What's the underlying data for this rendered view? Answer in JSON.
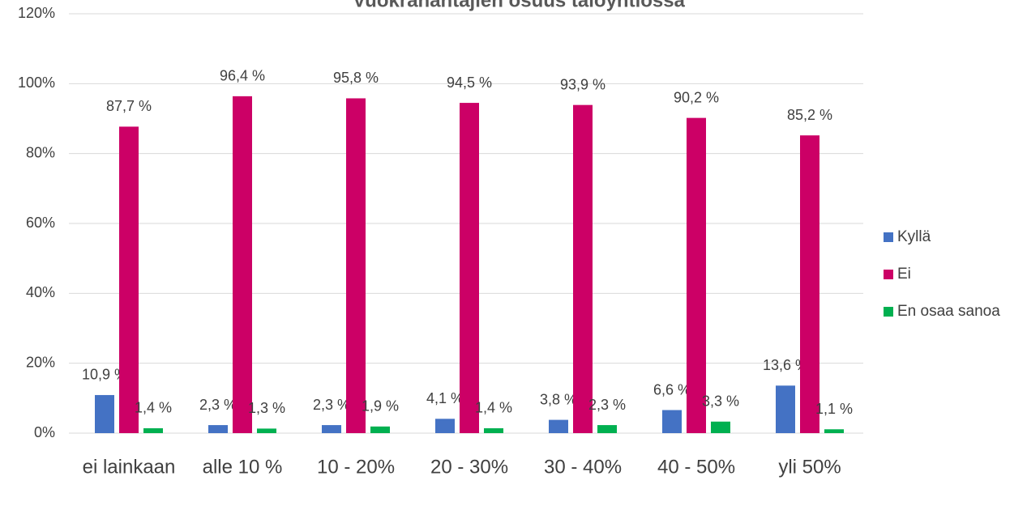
{
  "chart_data": {
    "type": "bar",
    "title": "Vuokranantajien osuus taloyhtiössä",
    "categories": [
      "ei lainkaan",
      "alle 10 %",
      "10 - 20%",
      "20 - 30%",
      "30 - 40%",
      "40 - 50%",
      "yli 50%"
    ],
    "series": [
      {
        "name": "Kyllä",
        "color": "#4472c4",
        "values": [
          10.9,
          2.3,
          2.3,
          4.1,
          3.8,
          6.6,
          13.6
        ],
        "value_labels": [
          "10,9 %",
          "2,3 %",
          "2,3 %",
          "4,1 %",
          "3,8 %",
          "6,6 %",
          "13,6 %"
        ]
      },
      {
        "name": "Ei",
        "color": "#cc0066",
        "values": [
          87.7,
          96.4,
          95.8,
          94.5,
          93.9,
          90.2,
          85.2
        ],
        "value_labels": [
          "87,7 %",
          "96,4 %",
          "95,8 %",
          "94,5 %",
          "93,9 %",
          "90,2 %",
          "85,2 %"
        ]
      },
      {
        "name": "En osaa sanoa",
        "color": "#00b050",
        "values": [
          1.4,
          1.3,
          1.9,
          1.4,
          2.3,
          3.3,
          1.1
        ],
        "value_labels": [
          "1,4 %",
          "1,3 %",
          "1,9 %",
          "1,4 %",
          "2,3 %",
          "3,3 %",
          "1,1 %"
        ]
      }
    ],
    "ylim": [
      0,
      120
    ],
    "yticks": [
      {
        "value": 0,
        "label": "0%"
      },
      {
        "value": 20,
        "label": "20%"
      },
      {
        "value": 40,
        "label": "40%"
      },
      {
        "value": 60,
        "label": "60%"
      },
      {
        "value": 80,
        "label": "80%"
      },
      {
        "value": 100,
        "label": "100%"
      },
      {
        "value": 120,
        "label": "120%"
      }
    ],
    "grid": true,
    "legend": "right"
  }
}
